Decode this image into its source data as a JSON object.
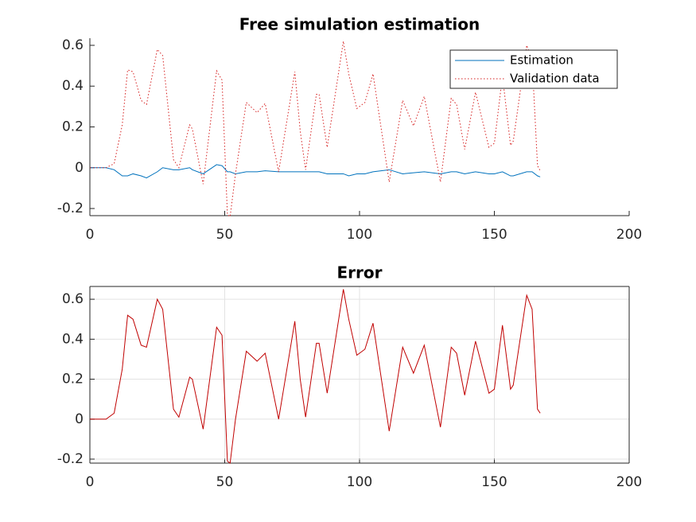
{
  "chart_data": [
    {
      "type": "line",
      "title": "Free simulation estimation",
      "x": [
        0,
        3,
        6,
        9,
        12,
        14,
        16,
        19,
        21,
        25,
        27,
        31,
        33,
        37,
        38,
        42,
        47,
        49,
        51,
        52,
        54,
        58,
        62,
        65,
        70,
        76,
        78,
        80,
        84,
        85,
        88,
        94,
        96,
        99,
        102,
        105,
        111,
        116,
        120,
        124,
        130,
        134,
        136,
        139,
        143,
        148,
        150,
        153,
        156,
        157,
        162,
        164,
        166,
        167
      ],
      "series": [
        {
          "name": "Estimation",
          "color": "#0072bd",
          "linestyle": "solid",
          "values": [
            0,
            0,
            0,
            -0.01,
            -0.04,
            -0.04,
            -0.03,
            -0.04,
            -0.05,
            -0.02,
            0.0,
            -0.01,
            -0.01,
            0.0,
            -0.01,
            -0.03,
            0.015,
            0.01,
            -0.02,
            -0.02,
            -0.03,
            -0.02,
            -0.02,
            -0.015,
            -0.02,
            -0.02,
            -0.02,
            -0.02,
            -0.02,
            -0.02,
            -0.03,
            -0.03,
            -0.04,
            -0.03,
            -0.03,
            -0.02,
            -0.01,
            -0.03,
            -0.025,
            -0.02,
            -0.03,
            -0.02,
            -0.02,
            -0.03,
            -0.02,
            -0.03,
            -0.03,
            -0.02,
            -0.04,
            -0.04,
            -0.02,
            -0.02,
            -0.04,
            -0.045
          ]
        },
        {
          "name": "Validation data",
          "color": "#d62020",
          "linestyle": "dotted",
          "values": [
            0,
            0,
            0,
            0.02,
            0.21,
            0.48,
            0.47,
            0.33,
            0.31,
            0.58,
            0.55,
            0.04,
            0,
            0.21,
            0.19,
            -0.08,
            0.475,
            0.43,
            -0.23,
            -0.24,
            -0.03,
            0.32,
            0.27,
            0.315,
            -0.02,
            0.47,
            0.18,
            -0.01,
            0.36,
            0.36,
            0.1,
            0.62,
            0.46,
            0.29,
            0.32,
            0.46,
            -0.07,
            0.33,
            0.205,
            0.35,
            -0.07,
            0.34,
            0.31,
            0.09,
            0.37,
            0.1,
            0.12,
            0.45,
            0.11,
            0.13,
            0.6,
            0.53,
            0.01,
            -0.015
          ]
        }
      ],
      "xlim": [
        0,
        200
      ],
      "xticks": [
        0,
        50,
        100,
        150,
        200
      ],
      "ylim": [
        -0.235,
        0.635
      ],
      "yticks": [
        -0.2,
        0,
        0.2,
        0.4,
        0.6
      ],
      "grid": false,
      "box": false,
      "legend": "northeast"
    },
    {
      "type": "line",
      "title": "Error",
      "x": [
        0,
        3,
        6,
        9,
        12,
        14,
        16,
        19,
        21,
        25,
        27,
        31,
        33,
        37,
        38,
        42,
        47,
        49,
        51,
        52,
        54,
        58,
        62,
        65,
        70,
        76,
        78,
        80,
        84,
        85,
        88,
        94,
        96,
        99,
        102,
        105,
        111,
        116,
        120,
        124,
        130,
        134,
        136,
        139,
        143,
        148,
        150,
        153,
        156,
        157,
        162,
        164,
        166,
        167
      ],
      "series": [
        {
          "color": "#c00000",
          "linestyle": "solid",
          "values": [
            0,
            0,
            0,
            0.03,
            0.25,
            0.52,
            0.5,
            0.37,
            0.36,
            0.6,
            0.55,
            0.05,
            0.01,
            0.21,
            0.2,
            -0.05,
            0.46,
            0.42,
            -0.21,
            -0.22,
            0,
            0.34,
            0.29,
            0.33,
            0,
            0.49,
            0.2,
            0.01,
            0.38,
            0.38,
            0.13,
            0.65,
            0.5,
            0.32,
            0.35,
            0.48,
            -0.06,
            0.36,
            0.23,
            0.37,
            -0.04,
            0.36,
            0.33,
            0.12,
            0.39,
            0.13,
            0.15,
            0.47,
            0.15,
            0.17,
            0.62,
            0.55,
            0.05,
            0.03
          ]
        }
      ],
      "xlim": [
        0,
        200
      ],
      "xticks": [
        0,
        50,
        100,
        150,
        200
      ],
      "ylim": [
        -0.22,
        0.664
      ],
      "yticks": [
        -0.2,
        0,
        0.2,
        0.4,
        0.6
      ],
      "grid": true,
      "box": true
    }
  ]
}
